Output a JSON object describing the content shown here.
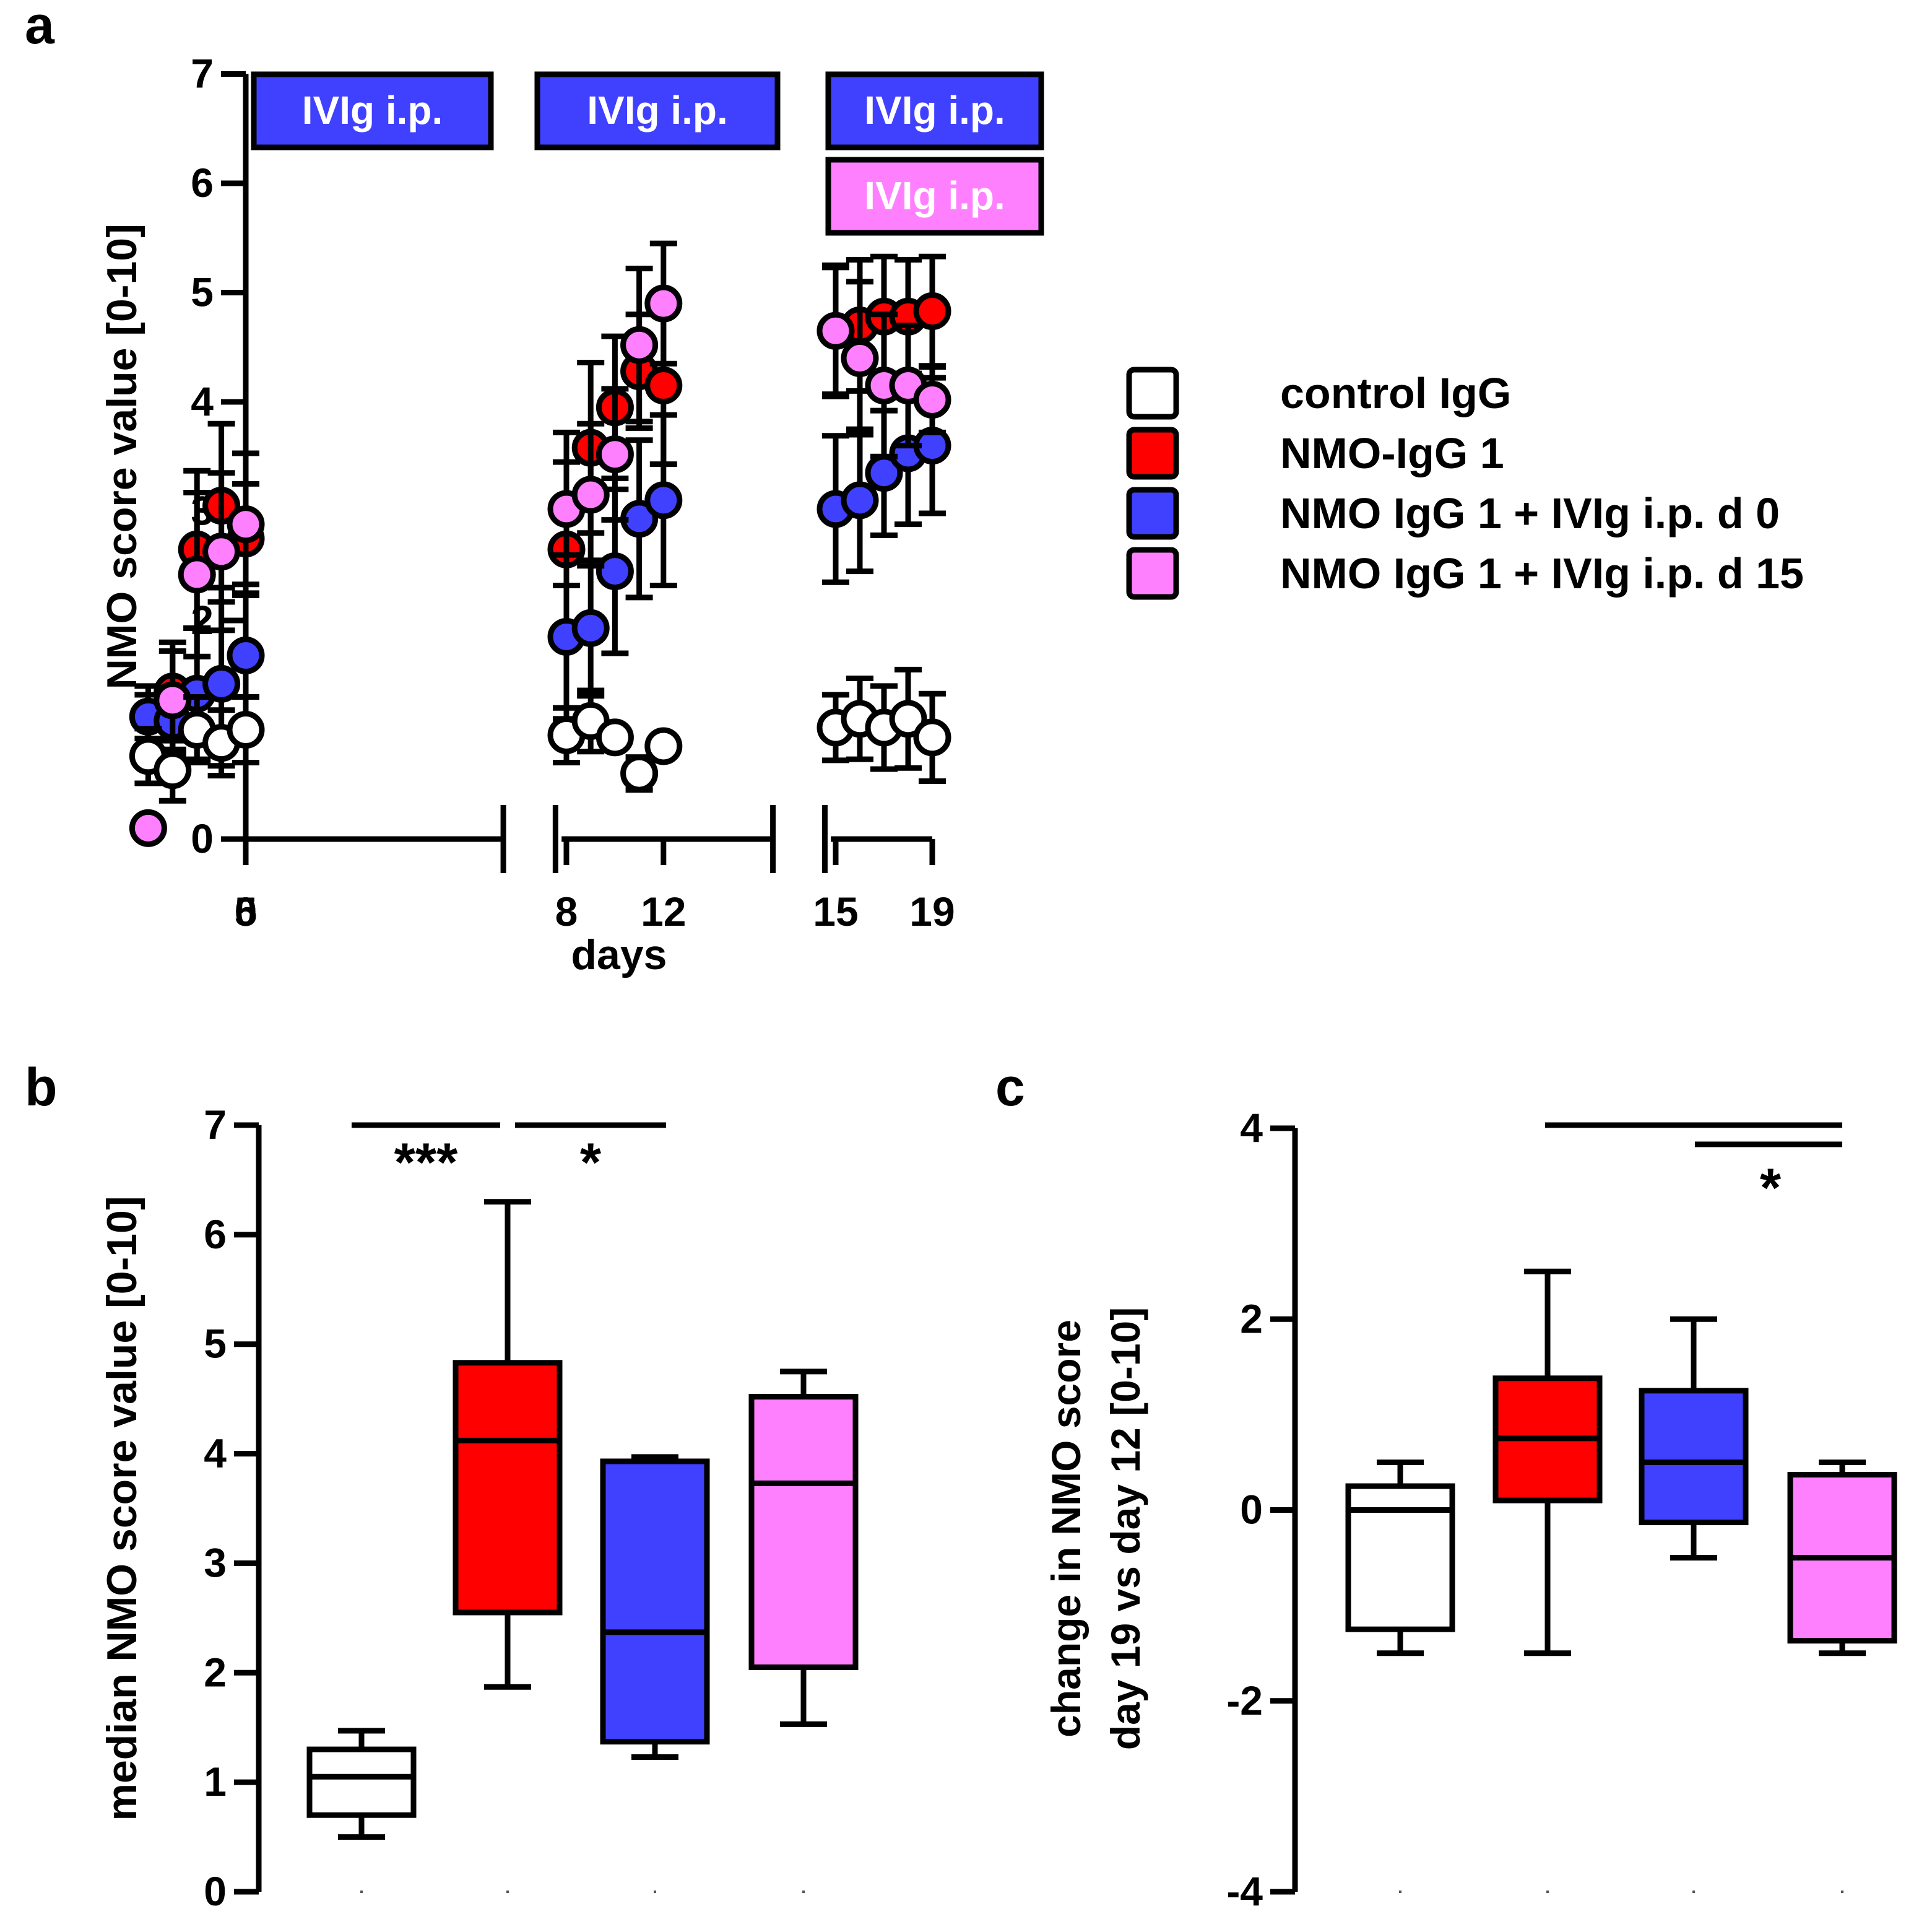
{
  "colors": {
    "control": "#ffffff",
    "nmo": "#ff0000",
    "ivig_d0": "#4040ff",
    "ivig_d15": "#ff80ff",
    "banner_blue": "#4040ff",
    "banner_pink": "#ff80ff",
    "axis": "#000000"
  },
  "chart_data": [
    {
      "panel": "a",
      "type": "scatter",
      "xlabel": "days",
      "ylabel": "NMO score value [0-10]",
      "xticks": [
        "0",
        "5",
        "8",
        "12",
        "15",
        "19"
      ],
      "yticks": [
        "0",
        "1",
        "2",
        "3",
        "4",
        "5",
        "6",
        "7"
      ],
      "ylim": [
        0,
        7
      ],
      "axis_segments": [
        [
          0,
          5
        ],
        [
          8,
          12
        ],
        [
          15,
          19
        ]
      ],
      "banners": [
        {
          "label": "IVIg i.p.",
          "from": 0,
          "to": 5,
          "color": "banner_blue",
          "row": 0
        },
        {
          "label": "IVIg i.p.",
          "from": 8,
          "to": 12,
          "color": "banner_blue",
          "row": 0
        },
        {
          "label": "IVIg i.p.",
          "from": 15,
          "to": 19,
          "color": "banner_blue",
          "row": 0
        },
        {
          "label": "IVIg i.p.",
          "from": 15,
          "to": 19,
          "color": "banner_pink",
          "row": 1
        }
      ],
      "legend": [
        {
          "label": "control IgG",
          "color": "control"
        },
        {
          "label": "NMO-IgG 1",
          "color": "nmo"
        },
        {
          "label": "NMO IgG 1 + IVIg i.p. d 0",
          "color": "ivig_d0"
        },
        {
          "label": "NMO IgG 1 + IVIg i.p. d 15",
          "color": "ivig_d15"
        }
      ],
      "series": [
        {
          "name": "NMO-IgG 1",
          "color": "nmo",
          "points": [
            {
              "x": 1,
              "y": 1.12,
              "err": 0.28
            },
            {
              "x": 2,
              "y": 1.35,
              "err": 0.45
            },
            {
              "x": 3,
              "y": 2.65,
              "err": 0.72
            },
            {
              "x": 4,
              "y": 3.05,
              "err": 0.75
            },
            {
              "x": 5,
              "y": 2.75,
              "err": 0.5
            },
            {
              "x": 8,
              "y": 2.65,
              "err": 0.8
            },
            {
              "x": 9,
              "y": 3.58,
              "err": 0.78
            },
            {
              "x": 10,
              "y": 3.95,
              "err": 0.65
            },
            {
              "x": 11,
              "y": 4.28,
              "err": 0.52
            },
            {
              "x": 12,
              "y": 4.15,
              "err": 0.72
            },
            {
              "x": 15,
              "y": 4.65,
              "err": 0.6
            },
            {
              "x": 16,
              "y": 4.7,
              "err": 0.6
            },
            {
              "x": 17,
              "y": 4.78,
              "err": 0.55
            },
            {
              "x": 18,
              "y": 4.78,
              "err": 0.52
            },
            {
              "x": 19,
              "y": 4.83,
              "err": 0.5
            }
          ]
        },
        {
          "name": "NMO IgG 1 + IVIg i.p. d 0",
          "color": "ivig_d0",
          "points": [
            {
              "x": 1,
              "y": 1.12,
              "err": 0.2
            },
            {
              "x": 2,
              "y": 1.08,
              "err": 0.3
            },
            {
              "x": 3,
              "y": 1.33,
              "err": 0.6
            },
            {
              "x": 4,
              "y": 1.42,
              "err": 0.75
            },
            {
              "x": 5,
              "y": 1.68,
              "err": 0.65
            },
            {
              "x": 8,
              "y": 1.85,
              "err": 0.75
            },
            {
              "x": 9,
              "y": 1.93,
              "err": 0.62
            },
            {
              "x": 10,
              "y": 2.45,
              "err": 0.75
            },
            {
              "x": 11,
              "y": 2.93,
              "err": 0.72
            },
            {
              "x": 12,
              "y": 3.1,
              "err": 0.78
            },
            {
              "x": 15,
              "y": 3.02,
              "err": 0.67
            },
            {
              "x": 16,
              "y": 3.1,
              "err": 0.65
            },
            {
              "x": 17,
              "y": 3.35,
              "err": 0.57
            },
            {
              "x": 18,
              "y": 3.53,
              "err": 0.65
            },
            {
              "x": 19,
              "y": 3.6,
              "err": 0.62
            }
          ]
        },
        {
          "name": "NMO IgG 1 + IVIg i.p. d 15",
          "color": "ivig_d15",
          "points": [
            {
              "x": 1,
              "y": 0.1,
              "err": 0
            },
            {
              "x": 2,
              "y": 1.27,
              "err": 0.45
            },
            {
              "x": 3,
              "y": 2.42,
              "err": 0.75
            },
            {
              "x": 4,
              "y": 2.63,
              "err": 0.72
            },
            {
              "x": 5,
              "y": 2.88,
              "err": 0.65
            },
            {
              "x": 8,
              "y": 3.02,
              "err": 0.7
            },
            {
              "x": 9,
              "y": 3.15,
              "err": 0.65
            },
            {
              "x": 10,
              "y": 3.52,
              "err": 0.6
            },
            {
              "x": 11,
              "y": 4.52,
              "err": 0.7
            },
            {
              "x": 12,
              "y": 4.9,
              "err": 0.55
            },
            {
              "x": 15,
              "y": 4.65,
              "err": 0.58
            },
            {
              "x": 16,
              "y": 4.4,
              "err": 0.7
            },
            {
              "x": 17,
              "y": 4.15,
              "err": 0.65
            },
            {
              "x": 18,
              "y": 4.15,
              "err": 0.55
            },
            {
              "x": 19,
              "y": 4.02,
              "err": 0.3
            }
          ]
        },
        {
          "name": "control IgG",
          "color": "control",
          "points": [
            {
              "x": 1,
              "y": 0.76,
              "err": 0.25
            },
            {
              "x": 2,
              "y": 0.63,
              "err": 0.28
            },
            {
              "x": 3,
              "y": 1.0,
              "err": 0.3
            },
            {
              "x": 4,
              "y": 0.88,
              "err": 0.3
            },
            {
              "x": 5,
              "y": 1.0,
              "err": 0.3
            },
            {
              "x": 8,
              "y": 0.95,
              "err": 0.25
            },
            {
              "x": 9,
              "y": 1.08,
              "err": 0.28
            },
            {
              "x": 10,
              "y": 0.93,
              "err": 0
            },
            {
              "x": 11,
              "y": 0.6,
              "err": 0.15
            },
            {
              "x": 12,
              "y": 0.85,
              "err": 0
            },
            {
              "x": 15,
              "y": 1.02,
              "err": 0.3
            },
            {
              "x": 16,
              "y": 1.1,
              "err": 0.37
            },
            {
              "x": 17,
              "y": 1.02,
              "err": 0.38
            },
            {
              "x": 18,
              "y": 1.1,
              "err": 0.45
            },
            {
              "x": 19,
              "y": 0.93,
              "err": 0.4
            }
          ]
        }
      ]
    },
    {
      "panel": "b",
      "type": "box",
      "ylabel": "median NMO score value [0-10]",
      "yticks": [
        "0",
        "1",
        "2",
        "3",
        "4",
        "5",
        "6",
        "7"
      ],
      "ylim": [
        0,
        7
      ],
      "boxes": [
        {
          "group": "control IgG",
          "color": "control",
          "whisker_low": 0.5,
          "q1": 0.7,
          "median": 1.05,
          "q3": 1.3,
          "whisker_high": 1.47
        },
        {
          "group": "NMO-IgG 1",
          "color": "nmo",
          "whisker_low": 1.87,
          "q1": 2.55,
          "median": 4.12,
          "q3": 4.83,
          "whisker_high": 6.3
        },
        {
          "group": "NMO IgG 1 + IVIg i.p. d 0",
          "color": "ivig_d0",
          "whisker_low": 1.23,
          "q1": 1.37,
          "median": 2.37,
          "q3": 3.93,
          "whisker_high": 3.97
        },
        {
          "group": "NMO IgG 1 + IVIg i.p. d 15",
          "color": "ivig_d15",
          "whisker_low": 1.53,
          "q1": 2.05,
          "median": 3.73,
          "q3": 4.52,
          "whisker_high": 4.75
        }
      ],
      "significance": [
        {
          "from": 0,
          "to": 1,
          "level": 0,
          "label": "***"
        },
        {
          "from": 1,
          "to": 2,
          "level": 0,
          "label": "*"
        }
      ]
    },
    {
      "panel": "c",
      "type": "box",
      "ylabel": [
        "change in NMO score",
        "day 19 vs day 12 [0-10]"
      ],
      "yticks": [
        "-4",
        "-2",
        "0",
        "2",
        "4"
      ],
      "ylim": [
        -4,
        4
      ],
      "boxes": [
        {
          "group": "control IgG",
          "color": "control",
          "whisker_low": -1.5,
          "q1": -1.25,
          "median": 0.0,
          "q3": 0.25,
          "whisker_high": 0.5
        },
        {
          "group": "NMO-IgG 1",
          "color": "nmo",
          "whisker_low": -1.5,
          "q1": 0.1,
          "median": 0.75,
          "q3": 1.38,
          "whisker_high": 2.5
        },
        {
          "group": "NMO IgG 1 + IVIg i.p. d 0",
          "color": "ivig_d0",
          "whisker_low": -0.5,
          "q1": -0.13,
          "median": 0.5,
          "q3": 1.25,
          "whisker_high": 2.0
        },
        {
          "group": "NMO IgG 1 + IVIg i.p. d 15",
          "color": "ivig_d15",
          "whisker_low": -1.5,
          "q1": -1.37,
          "median": -0.5,
          "q3": 0.37,
          "whisker_high": 0.5
        }
      ],
      "significance": [
        {
          "from": 1,
          "to": 3,
          "level": 0,
          "label": ""
        },
        {
          "from": 2,
          "to": 3,
          "level": 1,
          "label": "*"
        }
      ]
    }
  ]
}
